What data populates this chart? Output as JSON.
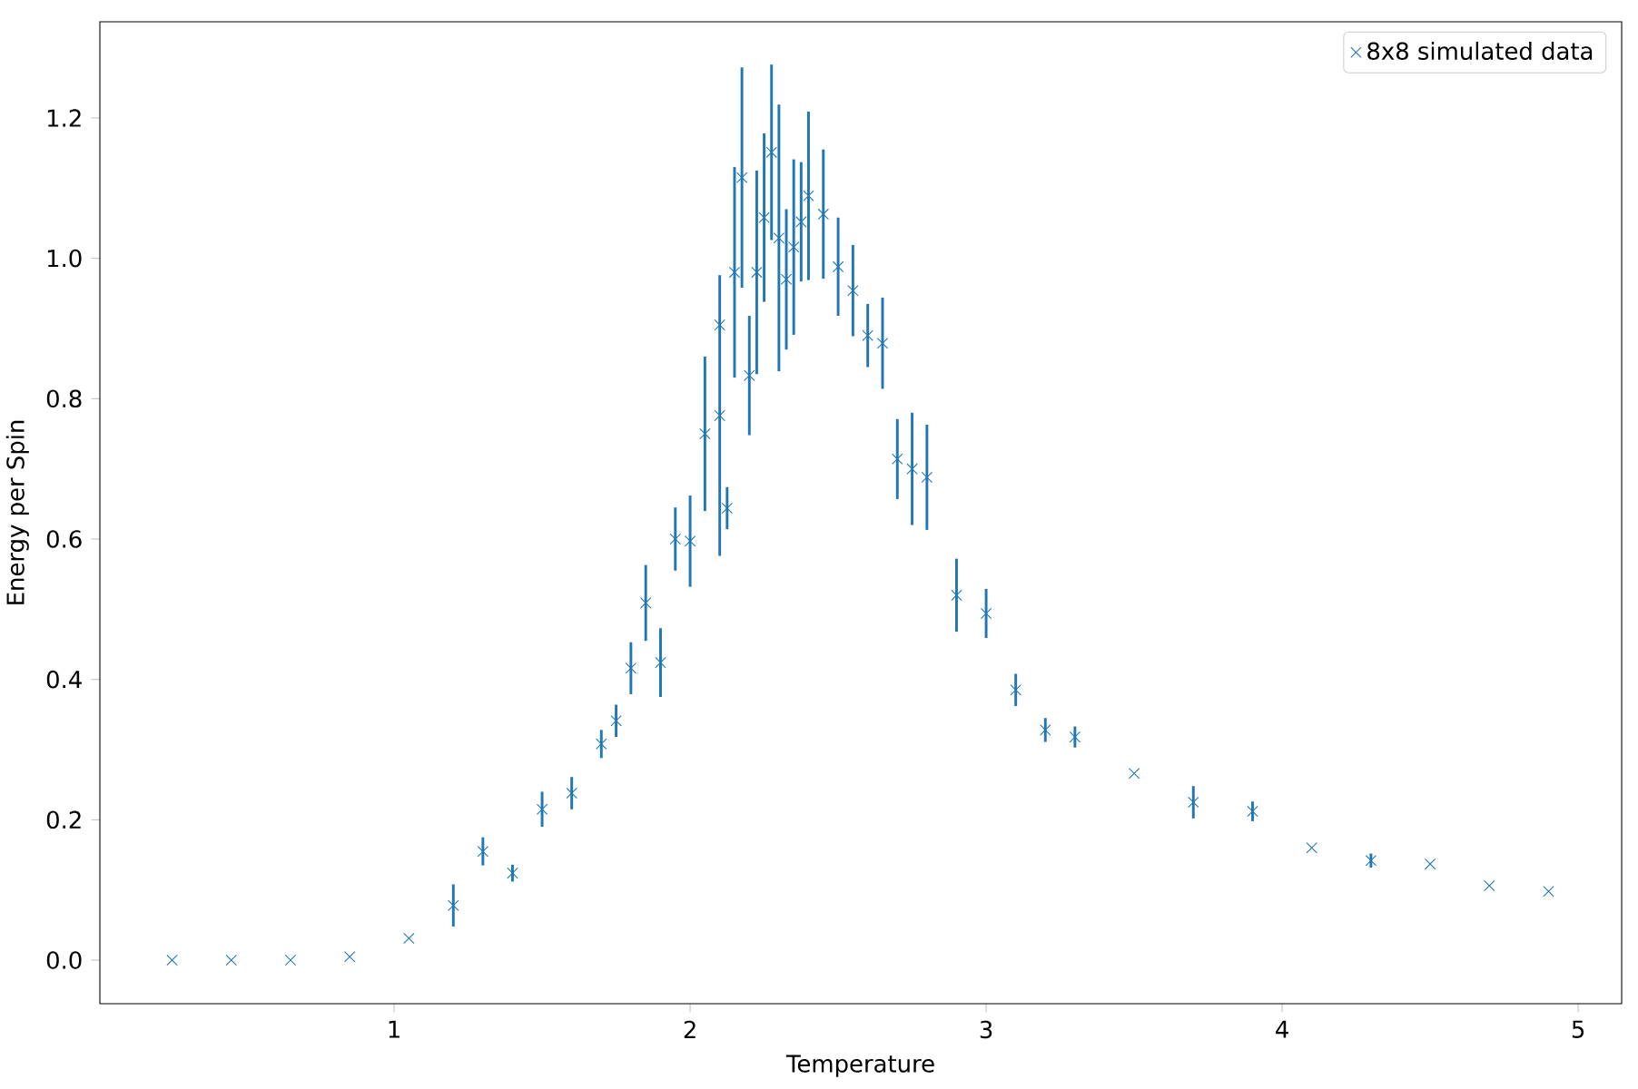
{
  "chart_data": {
    "type": "scatter",
    "xlabel": "Temperature",
    "ylabel": "Energy per Spin",
    "x": [
      0.25,
      0.45,
      0.65,
      0.85,
      1.05,
      1.2,
      1.3,
      1.4,
      1.5,
      1.6,
      1.7,
      1.75,
      1.8,
      1.85,
      1.9,
      1.95,
      2.0,
      2.05,
      2.1,
      2.1,
      2.125,
      2.15,
      2.175,
      2.2,
      2.225,
      2.25,
      2.275,
      2.3,
      2.325,
      2.35,
      2.375,
      2.4,
      2.45,
      2.5,
      2.55,
      2.6,
      2.65,
      2.7,
      2.75,
      2.8,
      2.9,
      3.0,
      3.1,
      3.2,
      3.3,
      3.5,
      3.7,
      3.9,
      4.1,
      4.3,
      4.5,
      4.7,
      4.9
    ],
    "series": [
      {
        "name": "8x8 simulated data",
        "color": "#1f77b4",
        "values": [
          0,
          0,
          0,
          0.005,
          0.031,
          0.078,
          0.155,
          0.124,
          0.215,
          0.238,
          0.308,
          0.341,
          0.416,
          0.509,
          0.424,
          0.6,
          0.597,
          0.75,
          0.905,
          0.776,
          0.644,
          0.98,
          1.115,
          0.833,
          0.98,
          1.058,
          1.151,
          1.029,
          0.97,
          1.016,
          1.052,
          1.089,
          1.063,
          0.988,
          0.954,
          0.89,
          0.879,
          0.714,
          0.7,
          0.688,
          0.52,
          0.494,
          0.385,
          0.328,
          0.318,
          0.266,
          0.225,
          0.212,
          0.16,
          0.142,
          0.137,
          0.106,
          0.098
        ],
        "errors": [
          null,
          null,
          null,
          null,
          null,
          0.03,
          0.02,
          0.012,
          0.025,
          0.023,
          0.02,
          0.023,
          0.037,
          0.054,
          0.049,
          0.045,
          0.065,
          0.11,
          null,
          0.2,
          0.03,
          0.15,
          0.157,
          0.085,
          0.145,
          0.12,
          0.125,
          0.19,
          0.1,
          0.125,
          0.085,
          0.12,
          0.092,
          0.07,
          0.065,
          0.045,
          0.065,
          0.057,
          0.08,
          0.075,
          0.052,
          0.035,
          0.023,
          0.017,
          0.015,
          null,
          0.023,
          0.014,
          null,
          0.01,
          null,
          null,
          null
        ]
      }
    ],
    "xlim": [
      0.006,
      5.147
    ],
    "ylim": [
      -0.062,
      1.337
    ],
    "xticks": [
      1,
      2,
      3,
      4,
      5
    ],
    "yticks": [
      {
        "value": 0,
        "label": "0.0"
      },
      {
        "value": 0.2,
        "label": "0.2"
      },
      {
        "value": 0.4,
        "label": "0.4"
      },
      {
        "value": 0.6,
        "label": "0.6"
      },
      {
        "value": 0.8,
        "label": "0.8"
      },
      {
        "value": 1.0,
        "label": "1.0"
      },
      {
        "value": 1.2,
        "label": "1.2"
      }
    ],
    "marker": "cross",
    "legend": "top right",
    "grid": false
  }
}
